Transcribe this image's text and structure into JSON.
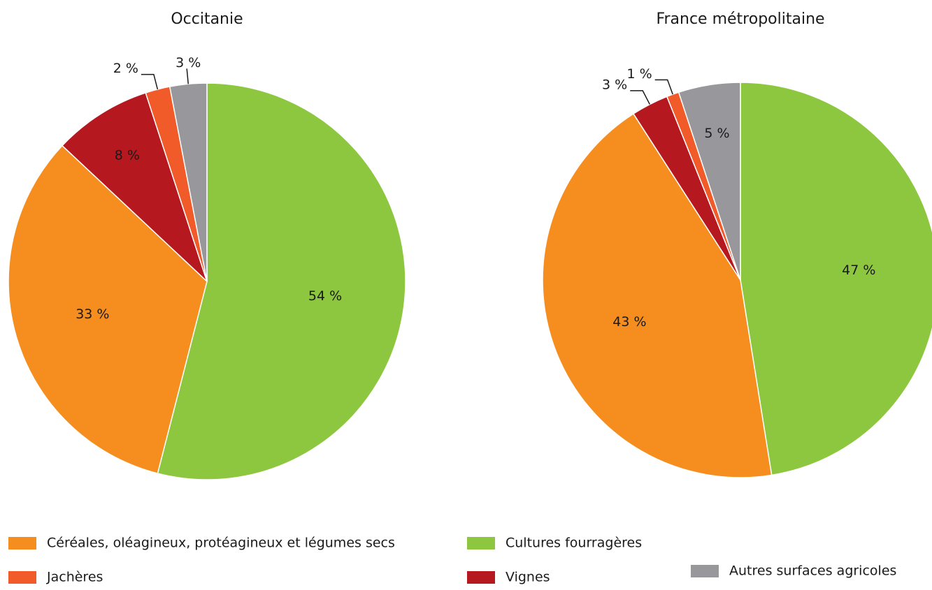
{
  "chart_data": [
    {
      "type": "pie",
      "title": "Occitanie",
      "categories": [
        "Cultures fourragères",
        "Céréales, oléagineux, protéagineux et légumes secs",
        "Vignes",
        "Jachères",
        "Autres surfaces agricoles"
      ],
      "values": [
        54,
        33,
        8,
        2,
        3
      ],
      "value_labels": [
        "54 %",
        "33 %",
        "8 %",
        "2 %",
        "3 %"
      ],
      "colors": [
        "#8dc63f",
        "#f68e1f",
        "#b5191f",
        "#f15a29",
        "#98989c"
      ]
    },
    {
      "type": "pie",
      "title": "France métropolitaine",
      "categories": [
        "Cultures fourragères",
        "Céréales, oléagineux, protéagineux et légumes secs",
        "Vignes",
        "Jachères",
        "Autres surfaces agricoles"
      ],
      "values": [
        47,
        43,
        3,
        1,
        5
      ],
      "value_labels": [
        "47 %",
        "43 %",
        "3 %",
        "1 %",
        "5 %"
      ],
      "colors": [
        "#8dc63f",
        "#f68e1f",
        "#b5191f",
        "#f15a29",
        "#98989c"
      ]
    }
  ]
}
